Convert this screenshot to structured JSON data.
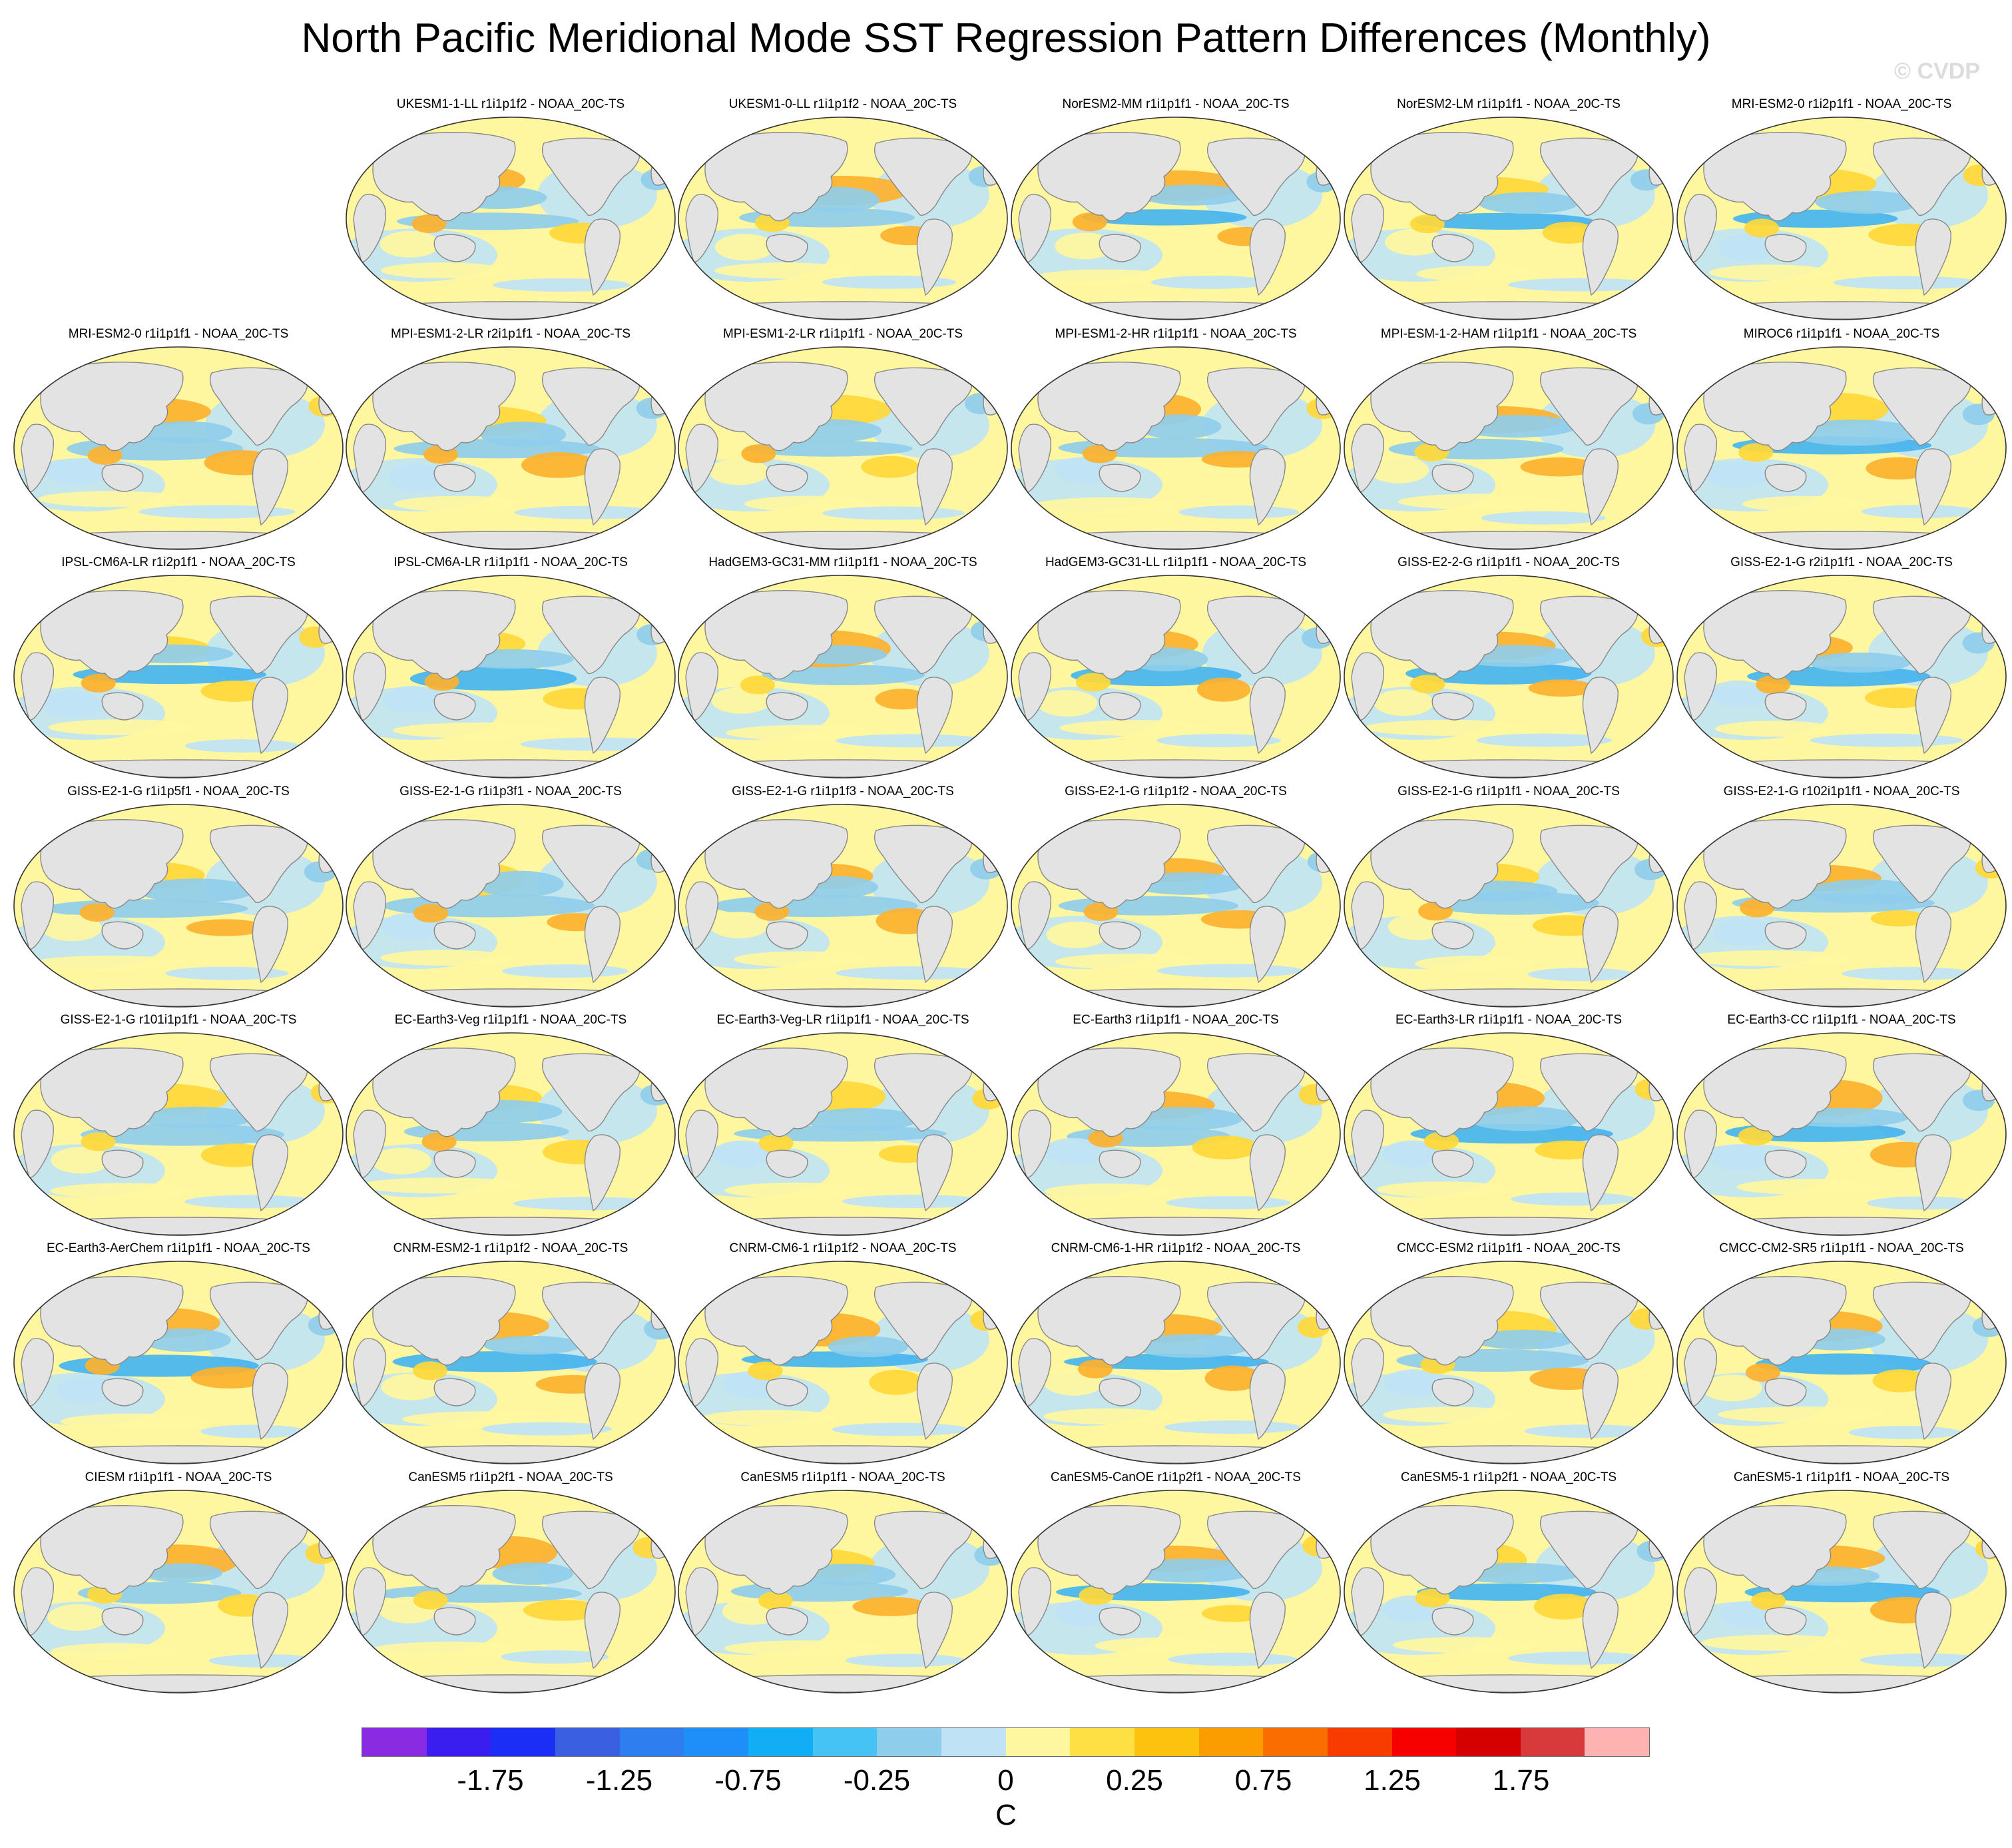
{
  "title": "North Pacific Meridional Mode SST Regression Pattern Differences (Monthly)",
  "watermark": "© CVDP",
  "panels": [
    "UKESM1-1-LL r1i1p1f2 - NOAA_20C-TS",
    "UKESM1-0-LL r1i1p1f2 - NOAA_20C-TS",
    "NorESM2-MM r1i1p1f1 - NOAA_20C-TS",
    "NorESM2-LM r1i1p1f1 - NOAA_20C-TS",
    "MRI-ESM2-0 r1i2p1f1 - NOAA_20C-TS",
    "MRI-ESM2-0 r1i1p1f1 - NOAA_20C-TS",
    "MPI-ESM1-2-LR r2i1p1f1 - NOAA_20C-TS",
    "MPI-ESM1-2-LR r1i1p1f1 - NOAA_20C-TS",
    "MPI-ESM1-2-HR r1i1p1f1 - NOAA_20C-TS",
    "MPI-ESM-1-2-HAM r1i1p1f1 - NOAA_20C-TS",
    "MIROC6 r1i1p1f1 - NOAA_20C-TS",
    "IPSL-CM6A-LR r1i2p1f1 - NOAA_20C-TS",
    "IPSL-CM6A-LR r1i1p1f1 - NOAA_20C-TS",
    "HadGEM3-GC31-MM r1i1p1f1 - NOAA_20C-TS",
    "HadGEM3-GC31-LL r1i1p1f1 - NOAA_20C-TS",
    "GISS-E2-2-G r1i1p1f1 - NOAA_20C-TS",
    "GISS-E2-1-G r2i1p1f1 - NOAA_20C-TS",
    "GISS-E2-1-G r1i1p5f1 - NOAA_20C-TS",
    "GISS-E2-1-G r1i1p3f1 - NOAA_20C-TS",
    "GISS-E2-1-G r1i1p1f3 - NOAA_20C-TS",
    "GISS-E2-1-G r1i1p1f2 - NOAA_20C-TS",
    "GISS-E2-1-G r1i1p1f1 - NOAA_20C-TS",
    "GISS-E2-1-G r102i1p1f1 - NOAA_20C-TS",
    "GISS-E2-1-G r101i1p1f1 - NOAA_20C-TS",
    "EC-Earth3-Veg r1i1p1f1 - NOAA_20C-TS",
    "EC-Earth3-Veg-LR r1i1p1f1 - NOAA_20C-TS",
    "EC-Earth3 r1i1p1f1 - NOAA_20C-TS",
    "EC-Earth3-LR r1i1p1f1 - NOAA_20C-TS",
    "EC-Earth3-CC r1i1p1f1 - NOAA_20C-TS",
    "EC-Earth3-AerChem r1i1p1f1 - NOAA_20C-TS",
    "CNRM-ESM2-1 r1i1p1f2 - NOAA_20C-TS",
    "CNRM-CM6-1 r1i1p1f2 - NOAA_20C-TS",
    "CNRM-CM6-1-HR r1i1p1f2 - NOAA_20C-TS",
    "CMCC-ESM2 r1i1p1f1 - NOAA_20C-TS",
    "CMCC-CM2-SR5 r1i1p1f1 - NOAA_20C-TS",
    "CIESM r1i1p1f1 - NOAA_20C-TS",
    "CanESM5 r1i1p2f1 - NOAA_20C-TS",
    "CanESM5 r1i1p1f1 - NOAA_20C-TS",
    "CanESM5-CanOE r1i1p2f1 - NOAA_20C-TS",
    "CanESM5-1 r1i1p2f1 - NOAA_20C-TS",
    "CanESM5-1 r1i1p1f1 - NOAA_20C-TS"
  ],
  "map_colors": {
    "ocean_light_blue": "#bfe3f5",
    "ocean_blue": "#8fcdec",
    "ocean_mid_blue": "#45b4ef",
    "ocean_light_yellow": "#fff7a0",
    "ocean_yellow": "#ffd838",
    "ocean_orange": "#fdb12e",
    "land": "#e3e3e3",
    "coast": "#888888"
  },
  "colorbar": {
    "colors": [
      "#8a2be2",
      "#3a1ef0",
      "#1a2ef5",
      "#3a5fe0",
      "#2f7ef0",
      "#1e8ff8",
      "#12aef5",
      "#45c3f5",
      "#8fcdec",
      "#bfe3f5",
      "#fff7a0",
      "#ffe044",
      "#fcc20e",
      "#fb9d00",
      "#fa6e00",
      "#f83c00",
      "#f70000",
      "#d50000",
      "#d8393a",
      "#ffb2b2"
    ],
    "tick_labels": [
      "-1.75",
      "-1.25",
      "-0.75",
      "-0.25",
      "0",
      "0.25",
      "0.75",
      "1.25",
      "1.75"
    ],
    "tick_boundary_index": [
      2,
      4,
      6,
      8,
      10,
      12,
      14,
      16,
      18
    ],
    "unit": "C"
  }
}
